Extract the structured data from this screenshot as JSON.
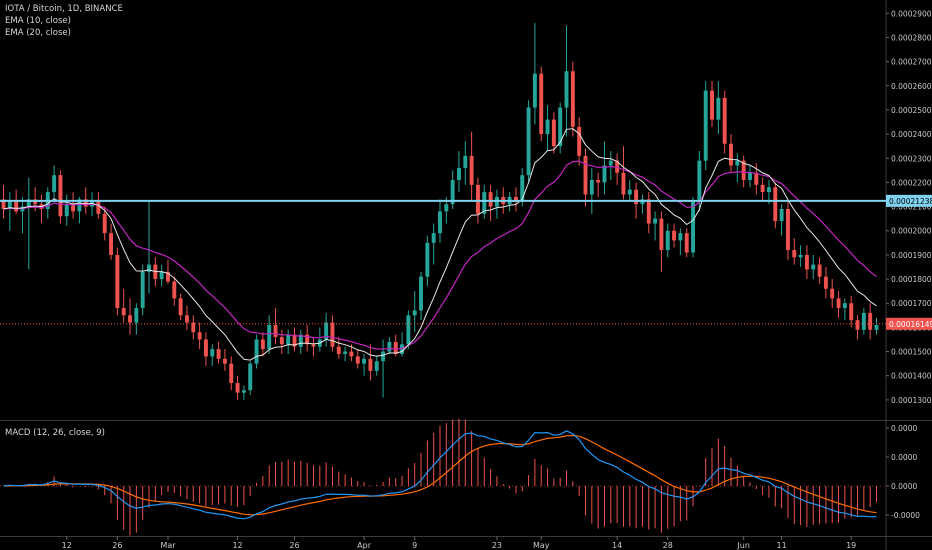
{
  "header": {
    "symbol_line": "IOTA / Bitcoin, 1D, BINANCE",
    "ema10_label": "EMA (10, close)",
    "ema20_label": "EMA (20, close)"
  },
  "macd_panel": {
    "label": "MACD (12, 26, close, 9)"
  },
  "chart_data": [
    {
      "type": "candlestick",
      "title": "IOTA / Bitcoin, 1D, BINANCE",
      "x_tick_labels": [
        "12",
        "26",
        "Mar",
        "12",
        "26",
        "Apr",
        "9",
        "23",
        "May",
        "14",
        "28",
        "Jun",
        "11",
        "19"
      ],
      "y_tick_labels": [
        "0.00029000",
        "0.00028000",
        "0.00027000",
        "0.00026000",
        "0.00025000",
        "0.00024000",
        "0.00023000",
        "0.00022000",
        "0.00021000",
        "0.00020000",
        "0.00019000",
        "0.00018000",
        "0.00017000",
        "0.00016000",
        "0.00015000",
        "0.00014000",
        "0.00013000"
      ],
      "ylim": [
        0.0001225,
        0.0002955
      ],
      "horizontal_line": {
        "value": 0.00021238,
        "label": "0.00021238",
        "color": "#7fd3f0"
      },
      "last_price": {
        "value": 0.00016149,
        "label": "0.00016149",
        "color": "#ef5350"
      },
      "ohlc": [
        [
          0.000213,
          0.000219,
          0.000205,
          0.000209
        ],
        [
          0.000209,
          0.000216,
          0.0002,
          0.000212
        ],
        [
          0.000212,
          0.000217,
          0.000207,
          0.000208
        ],
        [
          0.000208,
          0.000214,
          0.000199,
          0.00021
        ],
        [
          0.00021,
          0.000222,
          0.000184,
          0.000213
        ],
        [
          0.000213,
          0.000218,
          0.000208,
          0.000211
        ],
        [
          0.000211,
          0.000215,
          0.000203,
          0.000209
        ],
        [
          0.000209,
          0.000218,
          0.000205,
          0.000216
        ],
        [
          0.000216,
          0.000227,
          0.000212,
          0.000223
        ],
        [
          0.000223,
          0.000225,
          0.000203,
          0.000206
        ],
        [
          0.000206,
          0.000215,
          0.000202,
          0.000211
        ],
        [
          0.000211,
          0.000216,
          0.000205,
          0.000208
        ],
        [
          0.000208,
          0.000214,
          0.000203,
          0.000213
        ],
        [
          0.000213,
          0.000218,
          0.000207,
          0.00021
        ],
        [
          0.00021,
          0.000216,
          0.000206,
          0.000212
        ],
        [
          0.000212,
          0.000216,
          0.000205,
          0.000207
        ],
        [
          0.000207,
          0.00021,
          0.000196,
          0.000199
        ],
        [
          0.000199,
          0.000203,
          0.000188,
          0.00019
        ],
        [
          0.00019,
          0.000193,
          0.000165,
          0.000168
        ],
        [
          0.000168,
          0.000176,
          0.000162,
          0.000165
        ],
        [
          0.000165,
          0.000172,
          0.000157,
          0.000162
        ],
        [
          0.000162,
          0.00017,
          0.000157,
          0.000168
        ],
        [
          0.000168,
          0.000186,
          0.000165,
          0.000183
        ],
        [
          0.000183,
          0.000212,
          0.000174,
          0.000186
        ],
        [
          0.000186,
          0.000189,
          0.000177,
          0.00018
        ],
        [
          0.00018,
          0.000186,
          0.000177,
          0.000183
        ],
        [
          0.000183,
          0.000188,
          0.000178,
          0.000179
        ],
        [
          0.000179,
          0.000181,
          0.000169,
          0.000172
        ],
        [
          0.000172,
          0.000174,
          0.000163,
          0.000165
        ],
        [
          0.000165,
          0.000169,
          0.000159,
          0.000162
        ],
        [
          0.000162,
          0.000165,
          0.000155,
          0.000158
        ],
        [
          0.000158,
          0.000162,
          0.000151,
          0.000155
        ],
        [
          0.000155,
          0.000158,
          0.000144,
          0.000148
        ],
        [
          0.000148,
          0.000153,
          0.000144,
          0.000151
        ],
        [
          0.000151,
          0.000154,
          0.000145,
          0.000147
        ],
        [
          0.000147,
          0.000151,
          0.000142,
          0.000145
        ],
        [
          0.000145,
          0.000148,
          0.000134,
          0.000137
        ],
        [
          0.000137,
          0.00014,
          0.00013,
          0.000133
        ],
        [
          0.000133,
          0.000136,
          0.00013,
          0.000134
        ],
        [
          0.000134,
          0.000146,
          0.000132,
          0.000145
        ],
        [
          0.000145,
          0.000157,
          0.000143,
          0.000155
        ],
        [
          0.000155,
          0.000158,
          0.000148,
          0.000151
        ],
        [
          0.000151,
          0.000165,
          0.000149,
          0.000161
        ],
        [
          0.000161,
          0.000168,
          0.000153,
          0.000156
        ],
        [
          0.000156,
          0.000159,
          0.000149,
          0.000153
        ],
        [
          0.000153,
          0.000159,
          0.000149,
          0.000157
        ],
        [
          0.000157,
          0.00016,
          0.00015,
          0.000152
        ],
        [
          0.000152,
          0.000159,
          0.000149,
          0.000157
        ],
        [
          0.000157,
          0.000161,
          0.00015,
          0.000153
        ],
        [
          0.000153,
          0.000156,
          0.000148,
          0.000152
        ],
        [
          0.000152,
          0.00016,
          0.00015,
          0.000155
        ],
        [
          0.000155,
          0.000166,
          0.000152,
          0.000162
        ],
        [
          0.000162,
          0.000165,
          0.00015,
          0.000152
        ],
        [
          0.000152,
          0.000156,
          0.000147,
          0.000149
        ],
        [
          0.000149,
          0.000152,
          0.000146,
          0.00015
        ],
        [
          0.00015,
          0.000153,
          0.000146,
          0.000148
        ],
        [
          0.000148,
          0.000151,
          0.000143,
          0.000145
        ],
        [
          0.000145,
          0.000149,
          0.00014,
          0.000147
        ],
        [
          0.000147,
          0.000153,
          0.000138,
          0.000142
        ],
        [
          0.000142,
          0.000148,
          0.00014,
          0.000146
        ],
        [
          0.000146,
          0.000155,
          0.000131,
          0.00015
        ],
        [
          0.00015,
          0.000156,
          0.000149,
          0.000154
        ],
        [
          0.000154,
          0.000157,
          0.000148,
          0.000149
        ],
        [
          0.000149,
          0.000158,
          0.000148,
          0.000153
        ],
        [
          0.000153,
          0.000167,
          0.000151,
          0.000165
        ],
        [
          0.000165,
          0.000175,
          0.000158,
          0.000167
        ],
        [
          0.000167,
          0.000183,
          0.000163,
          0.000181
        ],
        [
          0.000181,
          0.000198,
          0.000177,
          0.000195
        ],
        [
          0.000195,
          0.000203,
          0.000186,
          0.000199
        ],
        [
          0.000199,
          0.000213,
          0.000195,
          0.000208
        ],
        [
          0.000208,
          0.000214,
          0.000203,
          0.000211
        ],
        [
          0.000211,
          0.000225,
          0.000209,
          0.000221
        ],
        [
          0.000221,
          0.000233,
          0.000216,
          0.000226
        ],
        [
          0.000226,
          0.000237,
          0.000219,
          0.000231
        ],
        [
          0.000231,
          0.000241,
          0.000212,
          0.000219
        ],
        [
          0.000219,
          0.000222,
          0.000203,
          0.000207
        ],
        [
          0.000207,
          0.000219,
          0.000205,
          0.000216
        ],
        [
          0.000216,
          0.000219,
          0.000204,
          0.00021
        ],
        [
          0.00021,
          0.000217,
          0.000205,
          0.000214
        ],
        [
          0.000214,
          0.000218,
          0.000207,
          0.000211
        ],
        [
          0.000211,
          0.000216,
          0.000208,
          0.000214
        ],
        [
          0.000214,
          0.000218,
          0.000208,
          0.000212
        ],
        [
          0.000212,
          0.000226,
          0.00021,
          0.000223
        ],
        [
          0.000223,
          0.000254,
          0.00022,
          0.000251
        ],
        [
          0.000251,
          0.000286,
          0.000244,
          0.000265
        ],
        [
          0.000265,
          0.000268,
          0.000237,
          0.00024
        ],
        [
          0.00024,
          0.000252,
          0.000233,
          0.000246
        ],
        [
          0.000246,
          0.000249,
          0.000232,
          0.000235
        ],
        [
          0.000235,
          0.000253,
          0.000232,
          0.000251
        ],
        [
          0.000251,
          0.000285,
          0.000239,
          0.000266
        ],
        [
          0.000266,
          0.00027,
          0.000239,
          0.000243
        ],
        [
          0.000243,
          0.000247,
          0.000227,
          0.000231
        ],
        [
          0.000231,
          0.000234,
          0.00021,
          0.000215
        ],
        [
          0.000215,
          0.000226,
          0.000207,
          0.000221
        ],
        [
          0.000221,
          0.000224,
          0.000214,
          0.00022
        ],
        [
          0.00022,
          0.000237,
          0.000215,
          0.000227
        ],
        [
          0.000227,
          0.000233,
          0.000221,
          0.000229
        ],
        [
          0.000229,
          0.000232,
          0.000219,
          0.000224
        ],
        [
          0.000224,
          0.000235,
          0.000213,
          0.000215
        ],
        [
          0.000215,
          0.000221,
          0.000212,
          0.000217
        ],
        [
          0.000217,
          0.00022,
          0.000205,
          0.000211
        ],
        [
          0.000211,
          0.000215,
          0.000207,
          0.000213
        ],
        [
          0.000213,
          0.000216,
          0.000199,
          0.000203
        ],
        [
          0.000203,
          0.000208,
          0.000196,
          0.000205
        ],
        [
          0.000205,
          0.000208,
          0.000183,
          0.000192
        ],
        [
          0.000192,
          0.000203,
          0.000189,
          0.0002
        ],
        [
          0.0002,
          0.000203,
          0.000193,
          0.000196
        ],
        [
          0.000196,
          0.000201,
          0.00019,
          0.000199
        ],
        [
          0.000199,
          0.000201,
          0.000189,
          0.000191
        ],
        [
          0.000191,
          0.000214,
          0.000189,
          0.000212
        ],
        [
          0.000212,
          0.000233,
          0.000208,
          0.000229
        ],
        [
          0.000229,
          0.000262,
          0.000225,
          0.000258
        ],
        [
          0.000258,
          0.000262,
          0.000243,
          0.000246
        ],
        [
          0.000246,
          0.000262,
          0.00024,
          0.000255
        ],
        [
          0.000255,
          0.000258,
          0.000232,
          0.000236
        ],
        [
          0.000236,
          0.00024,
          0.000224,
          0.000227
        ],
        [
          0.000227,
          0.000232,
          0.00022,
          0.000229
        ],
        [
          0.000229,
          0.000231,
          0.000218,
          0.000221
        ],
        [
          0.000221,
          0.000227,
          0.000218,
          0.000224
        ],
        [
          0.000224,
          0.000228,
          0.000215,
          0.000219
        ],
        [
          0.000219,
          0.000222,
          0.000212,
          0.000216
        ],
        [
          0.000216,
          0.000221,
          0.000211,
          0.000218
        ],
        [
          0.000218,
          0.00022,
          0.000201,
          0.000204
        ],
        [
          0.000204,
          0.000211,
          0.000198,
          0.000209
        ],
        [
          0.000209,
          0.000212,
          0.000188,
          0.000192
        ],
        [
          0.000192,
          0.000197,
          0.000186,
          0.000189
        ],
        [
          0.000189,
          0.000194,
          0.000185,
          0.00019
        ],
        [
          0.00019,
          0.000194,
          0.00018,
          0.000184
        ],
        [
          0.000184,
          0.00019,
          0.00018,
          0.000186
        ],
        [
          0.000186,
          0.000189,
          0.000178,
          0.000181
        ],
        [
          0.000181,
          0.000185,
          0.000172,
          0.000176
        ],
        [
          0.000176,
          0.00018,
          0.000168,
          0.000172
        ],
        [
          0.000172,
          0.000175,
          0.000164,
          0.000168
        ],
        [
          0.000168,
          0.000172,
          0.000163,
          0.00017
        ],
        [
          0.00017,
          0.000173,
          0.00016,
          0.000163
        ],
        [
          0.000163,
          0.000165,
          0.000155,
          0.000159
        ],
        [
          0.000159,
          0.000168,
          0.000157,
          0.000166
        ],
        [
          0.000166,
          0.00017,
          0.000155,
          0.000159
        ],
        [
          0.000159,
          0.000164,
          0.000157,
          0.000161
        ]
      ]
    },
    {
      "type": "line",
      "title": "MACD (12, 26, close, 9)",
      "y_tick_labels": [
        "0.0000",
        "0.0000",
        "0.0000",
        "-0.0000"
      ],
      "note": "values are relative; axis tick labels printed at 4 decimals",
      "series": [
        {
          "name": "MACD",
          "color": "#2196f3"
        },
        {
          "name": "Signal",
          "color": "#ff6d00"
        },
        {
          "name": "Histogram",
          "color": "#ef5350"
        }
      ]
    }
  ],
  "colors": {
    "background": "#000000",
    "up_candle": "#26a69a",
    "down_candle": "#ef5350",
    "ema10": "#e8e8e8",
    "ema20": "#c026c0",
    "grid": "#1e1e1e",
    "axis_text": "#c8c8c8"
  }
}
